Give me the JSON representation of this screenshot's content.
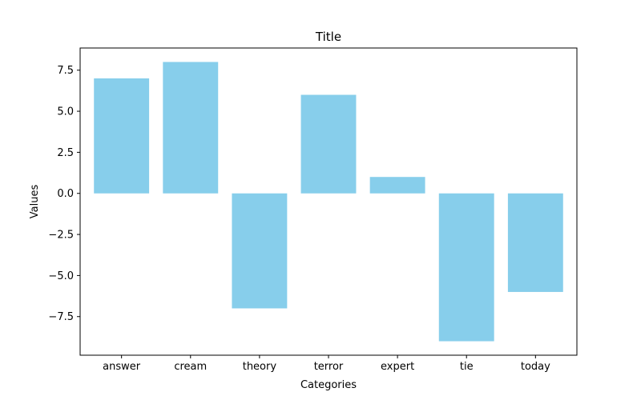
{
  "chart_data": {
    "type": "bar",
    "title": "Title",
    "xlabel": "Categories",
    "ylabel": "Values",
    "categories": [
      "answer",
      "cream",
      "theory",
      "terror",
      "expert",
      "tie",
      "today"
    ],
    "values": [
      7,
      8,
      -7,
      6,
      1,
      -9,
      -6
    ],
    "ylim": [
      -9.85,
      8.85
    ],
    "yticks": [
      -7.5,
      -5.0,
      -2.5,
      0.0,
      2.5,
      5.0,
      7.5
    ],
    "ytick_labels": [
      "−7.5",
      "−5.0",
      "−2.5",
      "0.0",
      "2.5",
      "5.0",
      "7.5"
    ],
    "bar_color": "#87CEEB",
    "grid": false,
    "legend": false
  }
}
